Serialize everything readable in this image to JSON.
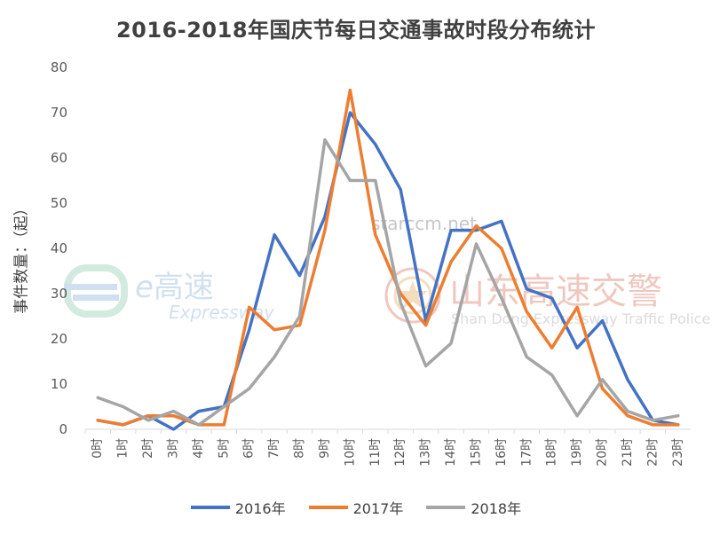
{
  "title": "2016-2018年国庆节每日交通事故时段分布统计",
  "ylabel": "事件数量：（起）",
  "watermarks": {
    "brand_text": "高速",
    "brand_sub": "Expressway",
    "site": "starccm.net",
    "police_text": "山东高速交警",
    "police_sub": "Shan Dong Expressway Traffic Police"
  },
  "chart_data": {
    "type": "line",
    "title": "2016-2018年国庆节每日交通事故时段分布统计",
    "xlabel": "",
    "ylabel": "事件数量：（起）",
    "ylim": [
      0,
      80
    ],
    "yticks": [
      0,
      10,
      20,
      30,
      40,
      50,
      60,
      70,
      80
    ],
    "grid": false,
    "legend": "bottom",
    "categories": [
      "0时",
      "1时",
      "2时",
      "3时",
      "4时",
      "5时",
      "6时",
      "7时",
      "8时",
      "9时",
      "10时",
      "11时",
      "12时",
      "13时",
      "14时",
      "15时",
      "16时",
      "17时",
      "18时",
      "19时",
      "20时",
      "21时",
      "22时",
      "23时"
    ],
    "series": [
      {
        "name": "2016年",
        "color": "#4472c4",
        "values": [
          2,
          1,
          3,
          0,
          4,
          5,
          22,
          43,
          34,
          47,
          70,
          63,
          53,
          24,
          44,
          44,
          46,
          31,
          29,
          18,
          24,
          11,
          2,
          1
        ]
      },
      {
        "name": "2017年",
        "color": "#ed7d31",
        "values": [
          2,
          1,
          3,
          3,
          1,
          1,
          27,
          22,
          23,
          44,
          75,
          43,
          30,
          23,
          37,
          45,
          40,
          26,
          18,
          27,
          9,
          3,
          1,
          1
        ]
      },
      {
        "name": "2018年",
        "color": "#a5a5a5",
        "values": [
          7,
          5,
          2,
          4,
          1,
          5,
          9,
          16,
          25,
          64,
          55,
          55,
          28,
          14,
          19,
          41,
          29,
          16,
          12,
          3,
          11,
          4,
          2,
          3
        ]
      }
    ]
  }
}
